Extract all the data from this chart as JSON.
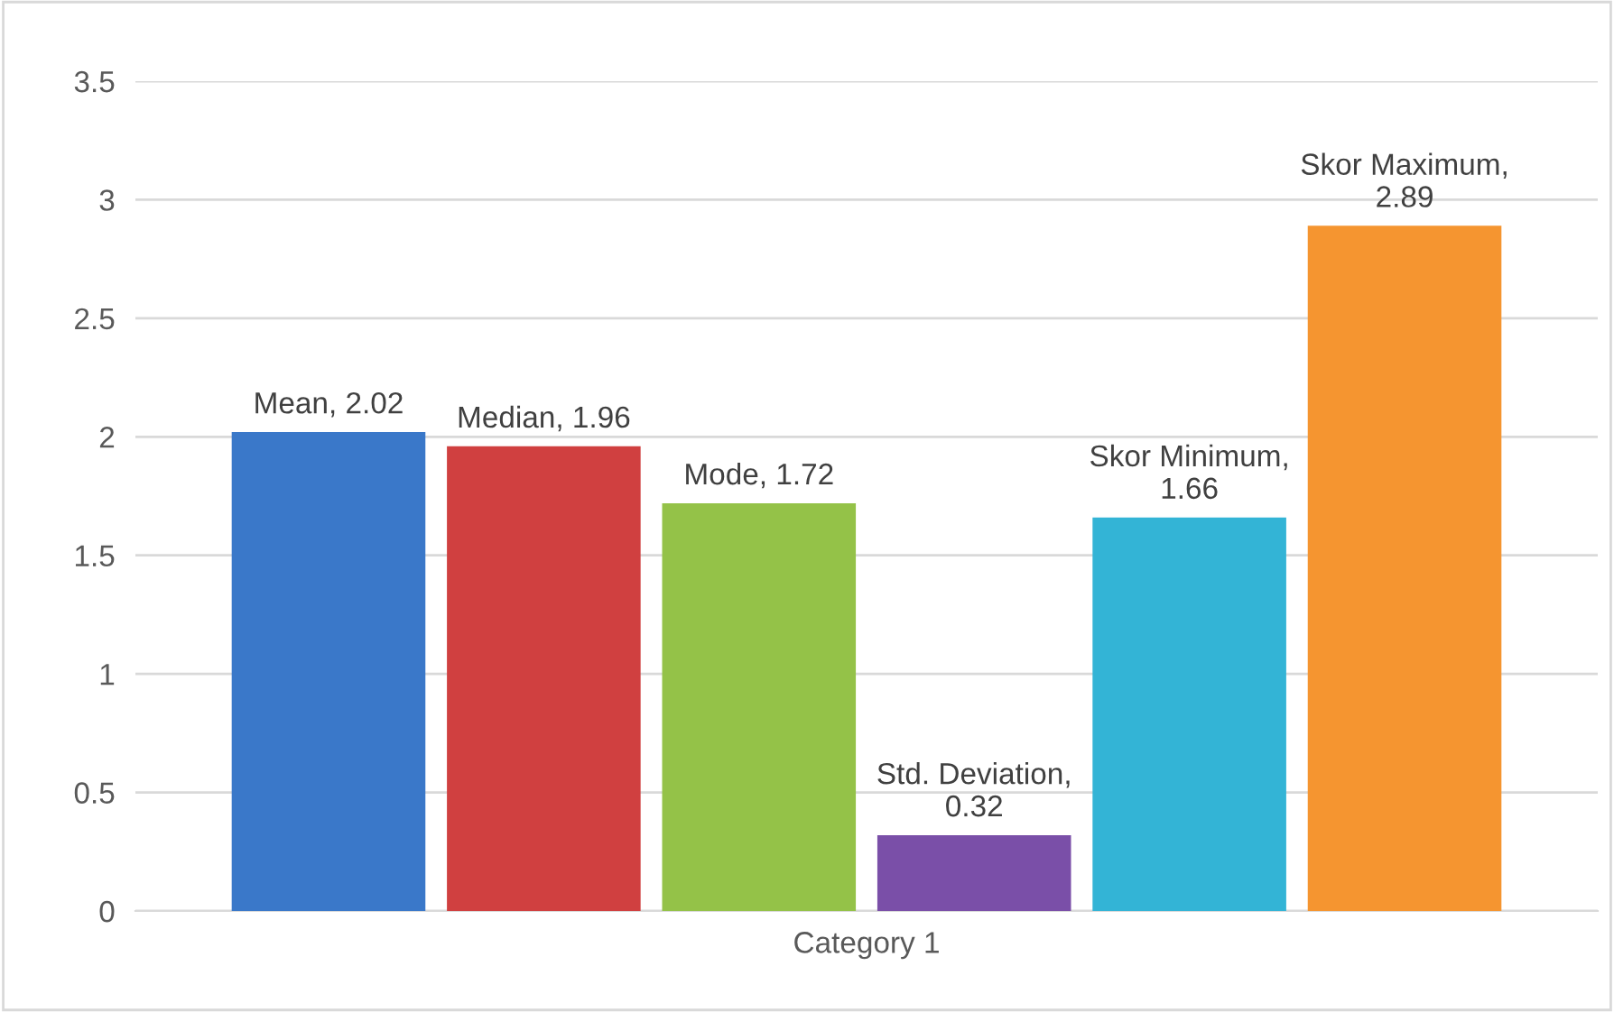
{
  "chart_data": {
    "type": "bar",
    "categories": [
      "Category 1"
    ],
    "series": [
      {
        "color": "#3a78c9",
        "values": [
          2.02
        ],
        "value_labels": [
          "Mean, 2.02"
        ]
      },
      {
        "color": "#d04040",
        "values": [
          1.96
        ],
        "value_labels": [
          "Median, 1.96"
        ]
      },
      {
        "color": "#94c248",
        "values": [
          1.72
        ],
        "value_labels": [
          "Mode, 1.72"
        ]
      },
      {
        "color": "#7a4fa8",
        "values": [
          0.32
        ],
        "value_labels": [
          "Std. Deviation,\n0.32"
        ]
      },
      {
        "color": "#33b4d6",
        "values": [
          1.66
        ],
        "value_labels": [
          "Skor Minimum,\n1.66"
        ]
      },
      {
        "color": "#f59530",
        "values": [
          2.89
        ],
        "value_labels": [
          "Skor Maximum,\n2.89"
        ]
      }
    ],
    "ylim": [
      0,
      3.5
    ],
    "yticks": [
      0,
      0.5,
      1,
      1.5,
      2,
      2.5,
      3,
      3.5
    ],
    "grid": "y",
    "legend": false
  }
}
